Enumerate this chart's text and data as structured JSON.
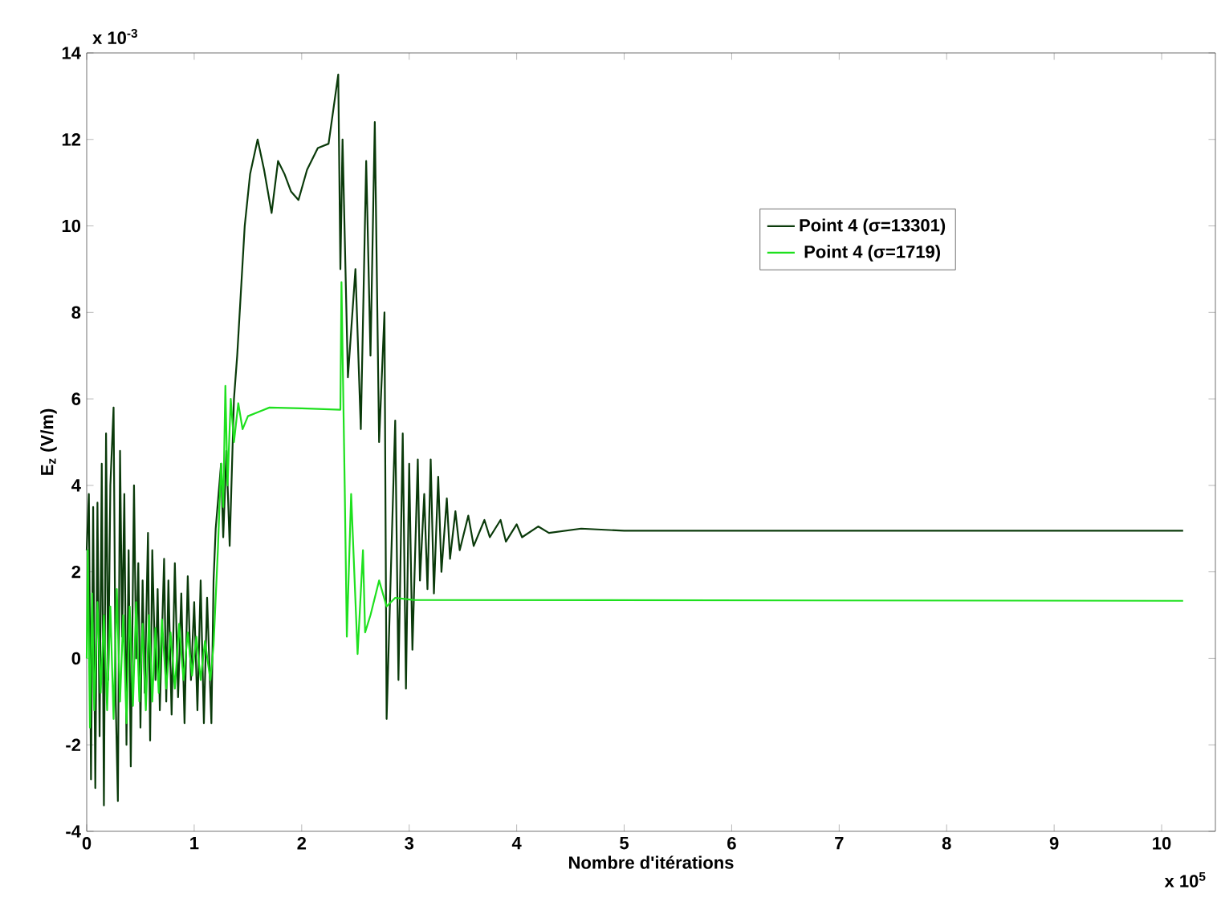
{
  "chart_data": {
    "type": "line",
    "xlabel": "Nombre d'itérations",
    "ylabel": "E$_{z}$ (V/m)",
    "annotations": [
      "x 10$^{-3}$",
      "x 10$^{5}$"
    ],
    "xlim": [
      0,
      10.5
    ],
    "ylim": [
      -4,
      14
    ],
    "xticks": [
      0,
      1,
      2,
      3,
      4,
      5,
      6,
      7,
      8,
      9,
      10
    ],
    "yticks": [
      -4,
      -2,
      0,
      2,
      4,
      6,
      8,
      10,
      12,
      14
    ],
    "grid": false,
    "legend": "top right",
    "marker": "none",
    "line_style": "solid",
    "series": [
      {
        "name": "Point 4 (σ=13301)",
        "color": "#0a3a0a",
        "x": [
          0,
          0.02,
          0.04,
          0.06,
          0.08,
          0.1,
          0.12,
          0.14,
          0.16,
          0.18,
          0.2,
          0.22,
          0.25,
          0.27,
          0.29,
          0.31,
          0.33,
          0.35,
          0.37,
          0.39,
          0.41,
          0.44,
          0.46,
          0.48,
          0.5,
          0.52,
          0.54,
          0.57,
          0.59,
          0.61,
          0.64,
          0.66,
          0.68,
          0.72,
          0.74,
          0.76,
          0.79,
          0.82,
          0.85,
          0.88,
          0.91,
          0.94,
          0.97,
          1.0,
          1.03,
          1.06,
          1.09,
          1.12,
          1.16,
          1.18,
          1.2,
          1.25,
          1.27,
          1.3,
          1.33,
          1.37,
          1.4,
          1.47,
          1.52,
          1.59,
          1.65,
          1.72,
          1.78,
          1.84,
          1.9,
          1.97,
          2.05,
          2.15,
          2.25,
          2.34,
          2.36,
          2.38,
          2.43,
          2.5,
          2.55,
          2.6,
          2.64,
          2.68,
          2.72,
          2.77,
          2.79,
          2.87,
          2.9,
          2.94,
          2.97,
          3.0,
          3.03,
          3.08,
          3.1,
          3.14,
          3.17,
          3.2,
          3.23,
          3.27,
          3.3,
          3.35,
          3.38,
          3.43,
          3.47,
          3.55,
          3.6,
          3.7,
          3.75,
          3.85,
          3.9,
          4.0,
          4.05,
          4.2,
          4.3,
          4.6,
          5.0,
          10.2
        ],
        "values": [
          2.5,
          3.8,
          -2.8,
          3.5,
          -3.0,
          3.6,
          -1.8,
          4.5,
          -3.4,
          5.2,
          -0.5,
          4.0,
          5.8,
          -1.0,
          -3.3,
          4.8,
          0.5,
          3.8,
          -2.0,
          2.5,
          -2.5,
          4.0,
          0.0,
          2.2,
          -1.6,
          1.8,
          -0.8,
          2.9,
          -1.9,
          2.5,
          -0.5,
          1.6,
          -1.2,
          2.3,
          -1.0,
          1.8,
          -1.3,
          2.2,
          -0.9,
          1.5,
          -1.5,
          1.9,
          -0.5,
          1.3,
          -1.2,
          1.8,
          -1.5,
          1.4,
          -1.5,
          1.8,
          3.0,
          4.5,
          2.8,
          4.8,
          2.6,
          6.0,
          7.0,
          10.0,
          11.2,
          12.0,
          11.3,
          10.3,
          11.5,
          11.2,
          10.8,
          10.6,
          11.3,
          11.8,
          11.9,
          13.5,
          9.0,
          12.0,
          6.5,
          9.0,
          5.3,
          11.5,
          7.0,
          12.4,
          5.0,
          8.0,
          -1.4,
          5.5,
          -0.5,
          5.2,
          -0.7,
          4.5,
          0.2,
          4.6,
          1.8,
          3.8,
          1.6,
          4.6,
          1.5,
          4.2,
          2.0,
          3.7,
          2.3,
          3.4,
          2.5,
          3.3,
          2.6,
          3.2,
          2.8,
          3.2,
          2.7,
          3.1,
          2.8,
          3.05,
          2.9,
          3.0,
          2.95,
          2.95
        ]
      },
      {
        "name": "Point 4 (σ=1719)",
        "color": "#1ee01e",
        "x": [
          0,
          0.01,
          0.03,
          0.05,
          0.07,
          0.1,
          0.13,
          0.16,
          0.19,
          0.22,
          0.25,
          0.28,
          0.31,
          0.34,
          0.37,
          0.4,
          0.43,
          0.46,
          0.49,
          0.52,
          0.55,
          0.58,
          0.61,
          0.64,
          0.67,
          0.7,
          0.74,
          0.78,
          0.82,
          0.86,
          0.9,
          0.94,
          0.98,
          1.02,
          1.06,
          1.1,
          1.15,
          1.18,
          1.22,
          1.25,
          1.27,
          1.29,
          1.31,
          1.34,
          1.37,
          1.41,
          1.45,
          1.5,
          1.6,
          1.7,
          2.0,
          2.36,
          2.37,
          2.4,
          2.42,
          2.46,
          2.52,
          2.57,
          2.59,
          2.64,
          2.72,
          2.79,
          2.87,
          3.04,
          10.2
        ],
        "values": [
          0,
          2.5,
          -1.6,
          1.5,
          -1.2,
          1.3,
          -0.8,
          1.0,
          -1.2,
          1.2,
          -1.4,
          1.6,
          -1.0,
          1.0,
          -1.5,
          1.2,
          -1.1,
          1.3,
          -1.0,
          0.8,
          -1.2,
          1.0,
          -1.0,
          0.7,
          -0.8,
          0.9,
          -0.7,
          0.6,
          -0.7,
          0.8,
          -0.5,
          0.6,
          -0.4,
          0.5,
          -0.5,
          0.4,
          -0.5,
          0.3,
          2.5,
          4.5,
          3.5,
          6.3,
          4.0,
          6.0,
          5.0,
          5.9,
          5.3,
          5.6,
          5.7,
          5.8,
          5.78,
          5.75,
          8.7,
          4.0,
          0.5,
          3.8,
          0.1,
          2.5,
          0.6,
          1.0,
          1.8,
          1.2,
          1.4,
          1.35,
          1.33
        ]
      }
    ]
  }
}
